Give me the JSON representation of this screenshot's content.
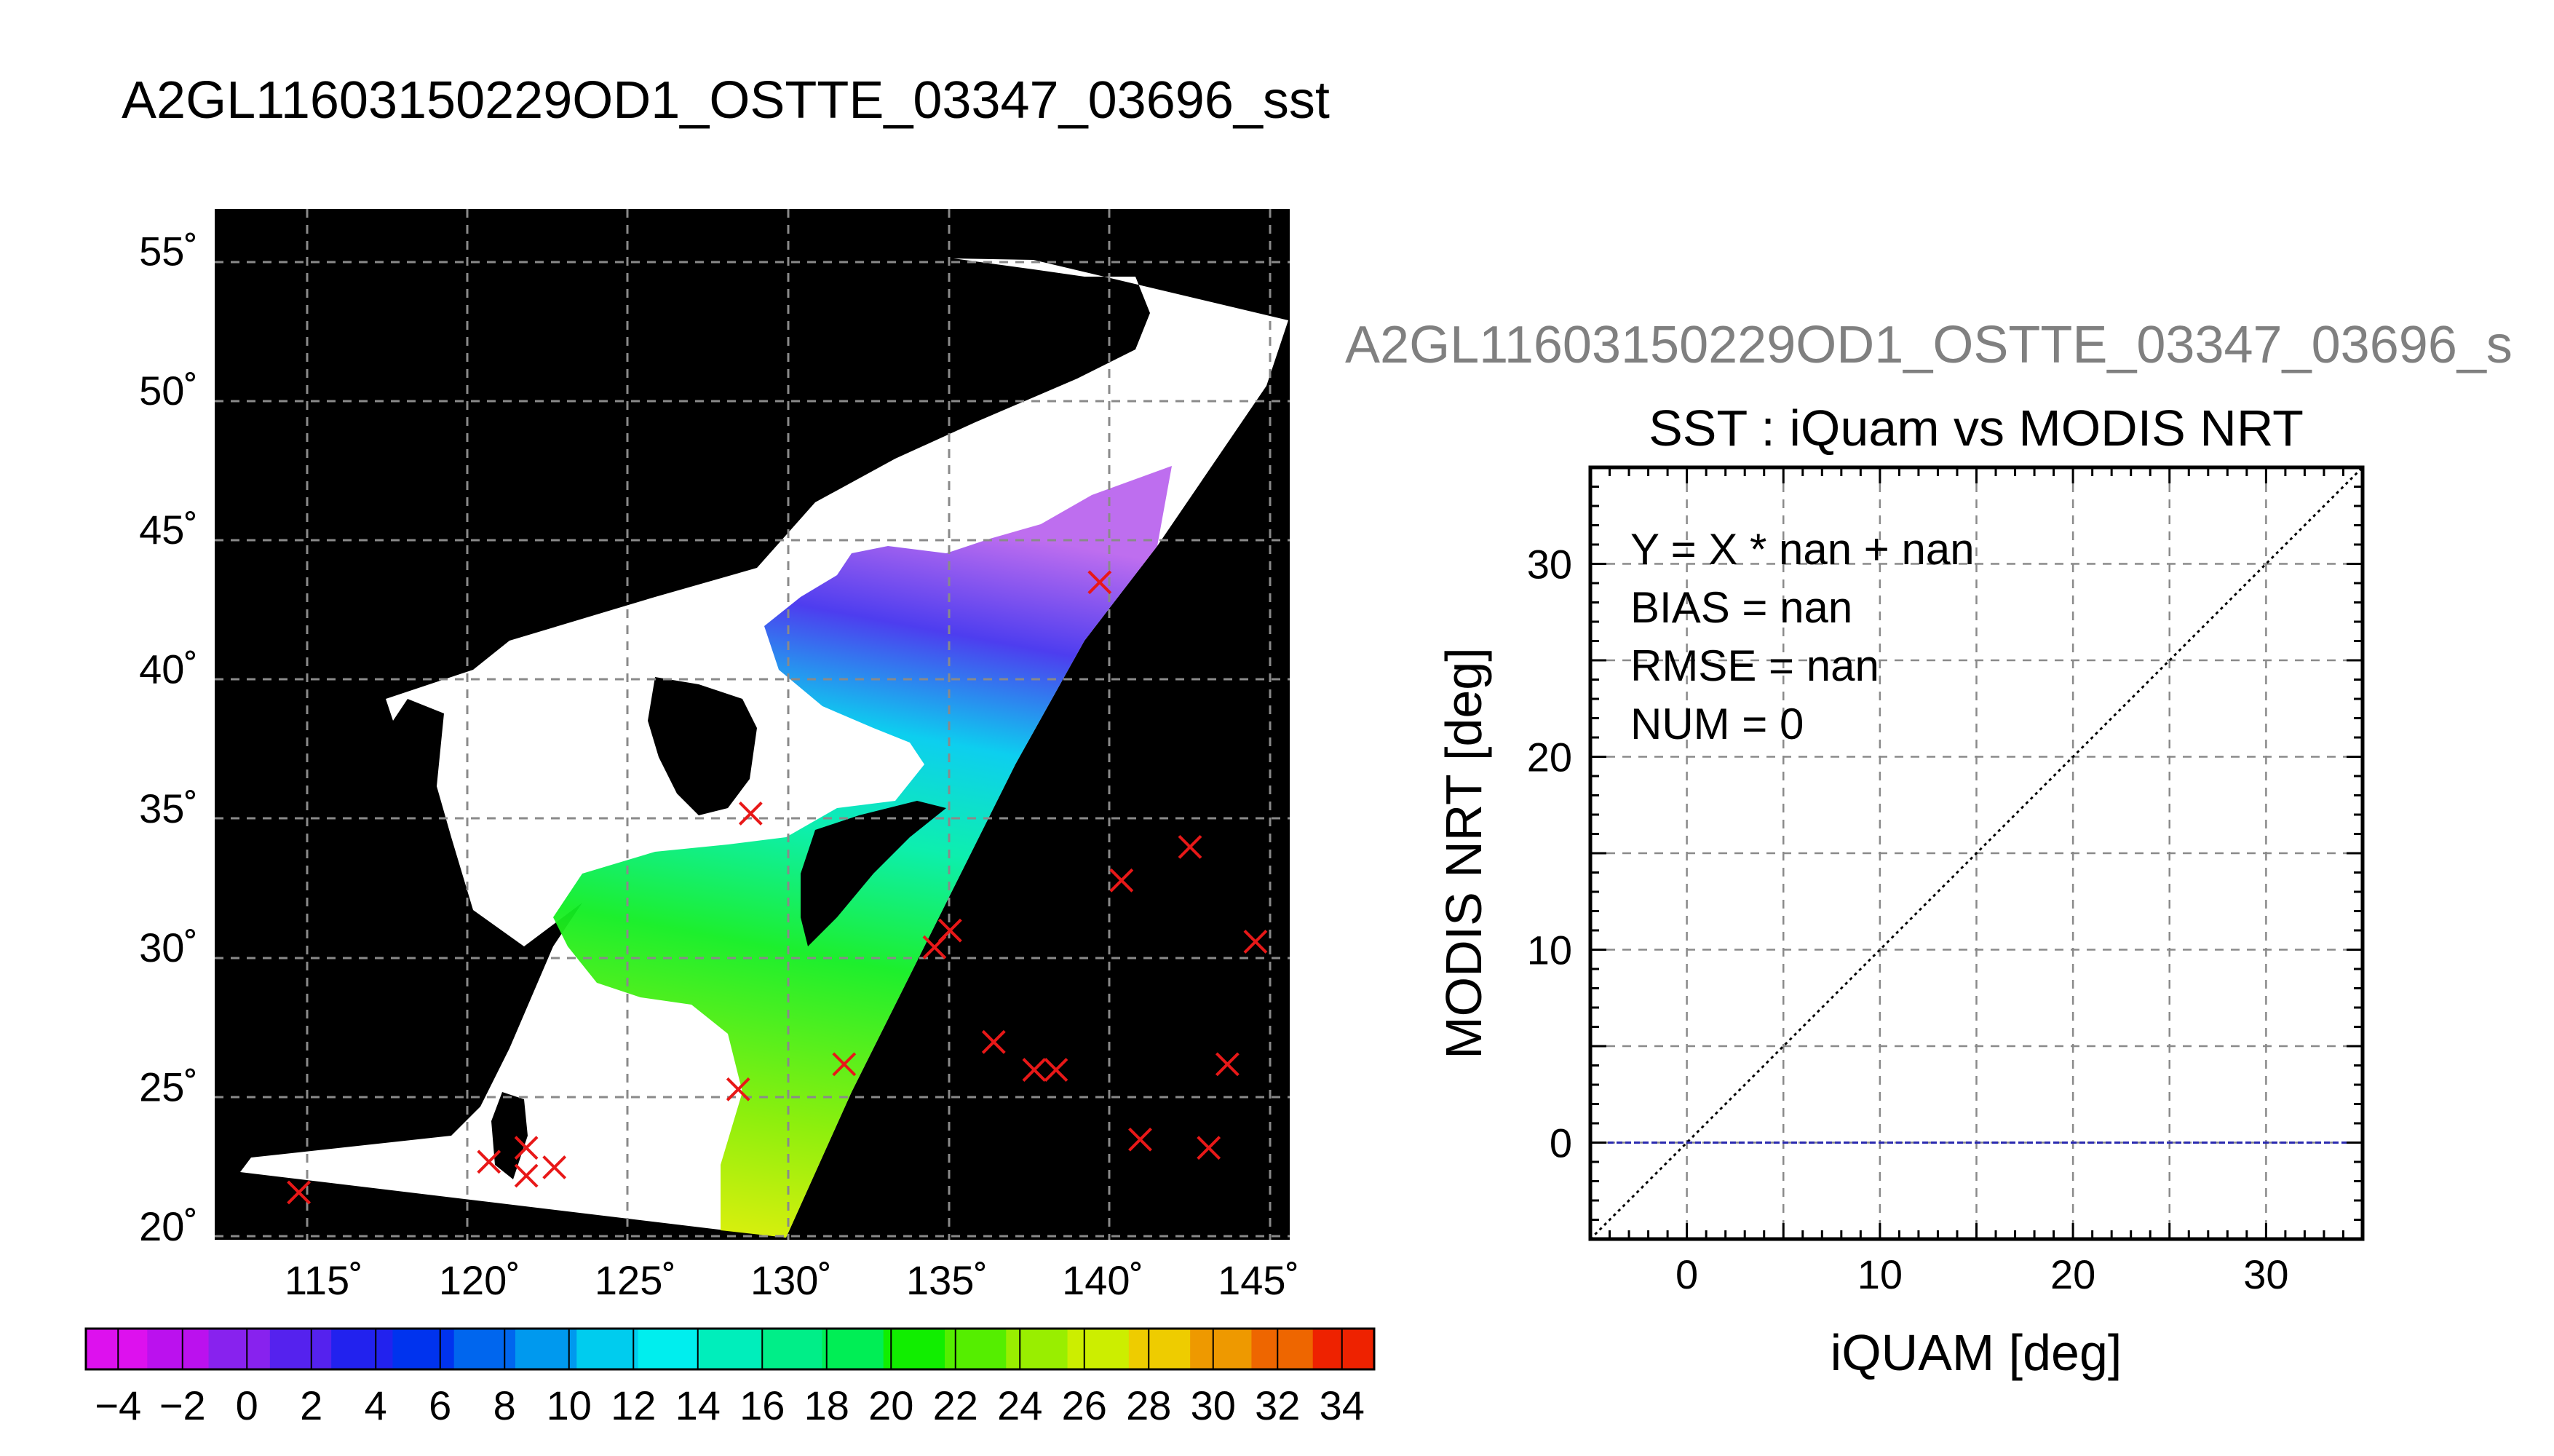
{
  "figure_title": "A2GL11603150229OD1_OSTTE_03347_03696_sst",
  "scatter_caption": "A2GL11603150229OD1_OSTTE_03347_03696_s",
  "chart_data": [
    {
      "type": "map",
      "lon_ticks": [
        115,
        120,
        125,
        130,
        135,
        140,
        145
      ],
      "lat_ticks": [
        20,
        25,
        30,
        35,
        40,
        45,
        50,
        55
      ],
      "lon_range": [
        111.5,
        146
      ],
      "lat_range": [
        19.5,
        56.5
      ],
      "degree_symbol": "˚",
      "background_color": "#000000",
      "land_color": "#ffffff",
      "marker_color": "#e81818",
      "markers": [
        {
          "lon": 114.2,
          "lat": 21.2
        },
        {
          "lon": 120.3,
          "lat": 22.3
        },
        {
          "lon": 121.5,
          "lat": 22.8
        },
        {
          "lon": 121.5,
          "lat": 21.8
        },
        {
          "lon": 122.4,
          "lat": 22.1
        },
        {
          "lon": 128.3,
          "lat": 24.9
        },
        {
          "lon": 128.7,
          "lat": 34.8
        },
        {
          "lon": 131.7,
          "lat": 25.8
        },
        {
          "lon": 134.6,
          "lat": 30.0
        },
        {
          "lon": 135.1,
          "lat": 30.6
        },
        {
          "lon": 136.5,
          "lat": 26.6
        },
        {
          "lon": 137.8,
          "lat": 25.6
        },
        {
          "lon": 138.5,
          "lat": 25.6
        },
        {
          "lon": 139.9,
          "lat": 43.1
        },
        {
          "lon": 140.6,
          "lat": 32.4
        },
        {
          "lon": 141.2,
          "lat": 23.1
        },
        {
          "lon": 142.8,
          "lat": 33.6
        },
        {
          "lon": 143.4,
          "lat": 22.8
        },
        {
          "lon": 144.0,
          "lat": 25.8
        },
        {
          "lon": 144.9,
          "lat": 30.2
        }
      ]
    },
    {
      "type": "colorbar",
      "range": [
        -5,
        35
      ],
      "tick_labels": [
        "−4",
        "−2",
        "0",
        "2",
        "4",
        "6",
        "8",
        "10",
        "12",
        "14",
        "16",
        "18",
        "20",
        "22",
        "24",
        "26",
        "28",
        "30",
        "32",
        "34"
      ],
      "colors": [
        "#dd11ee",
        "#bb11ee",
        "#8822ee",
        "#5522ee",
        "#2222ee",
        "#0033ee",
        "#0066ee",
        "#0099ee",
        "#00ccee",
        "#00eeee",
        "#00eebb",
        "#00ee88",
        "#00ee55",
        "#11ee00",
        "#55ee00",
        "#99ee00",
        "#ccee00",
        "#eecc00",
        "#ee9900",
        "#ee6600",
        "#ee2200"
      ]
    },
    {
      "type": "scatter",
      "title": "SST : iQuam vs MODIS NRT",
      "xlabel": "iQUAM [deg]",
      "ylabel": "MODIS NRT [deg]",
      "xlim": [
        -5,
        35
      ],
      "ylim": [
        -5,
        35
      ],
      "xticks": [
        0,
        10,
        20,
        30
      ],
      "yticks": [
        0,
        10,
        20,
        30
      ],
      "grid": true,
      "annotations": [
        "Y = X * nan + nan",
        "BIAS = nan",
        "RMSE = nan",
        "NUM = 0"
      ],
      "lines": [
        {
          "kind": "one-to-one",
          "color": "#000000",
          "style": "dotted"
        },
        {
          "kind": "horizontal",
          "y": 0,
          "color": "#2a2ab0",
          "style": "dashed"
        }
      ],
      "points": []
    }
  ]
}
